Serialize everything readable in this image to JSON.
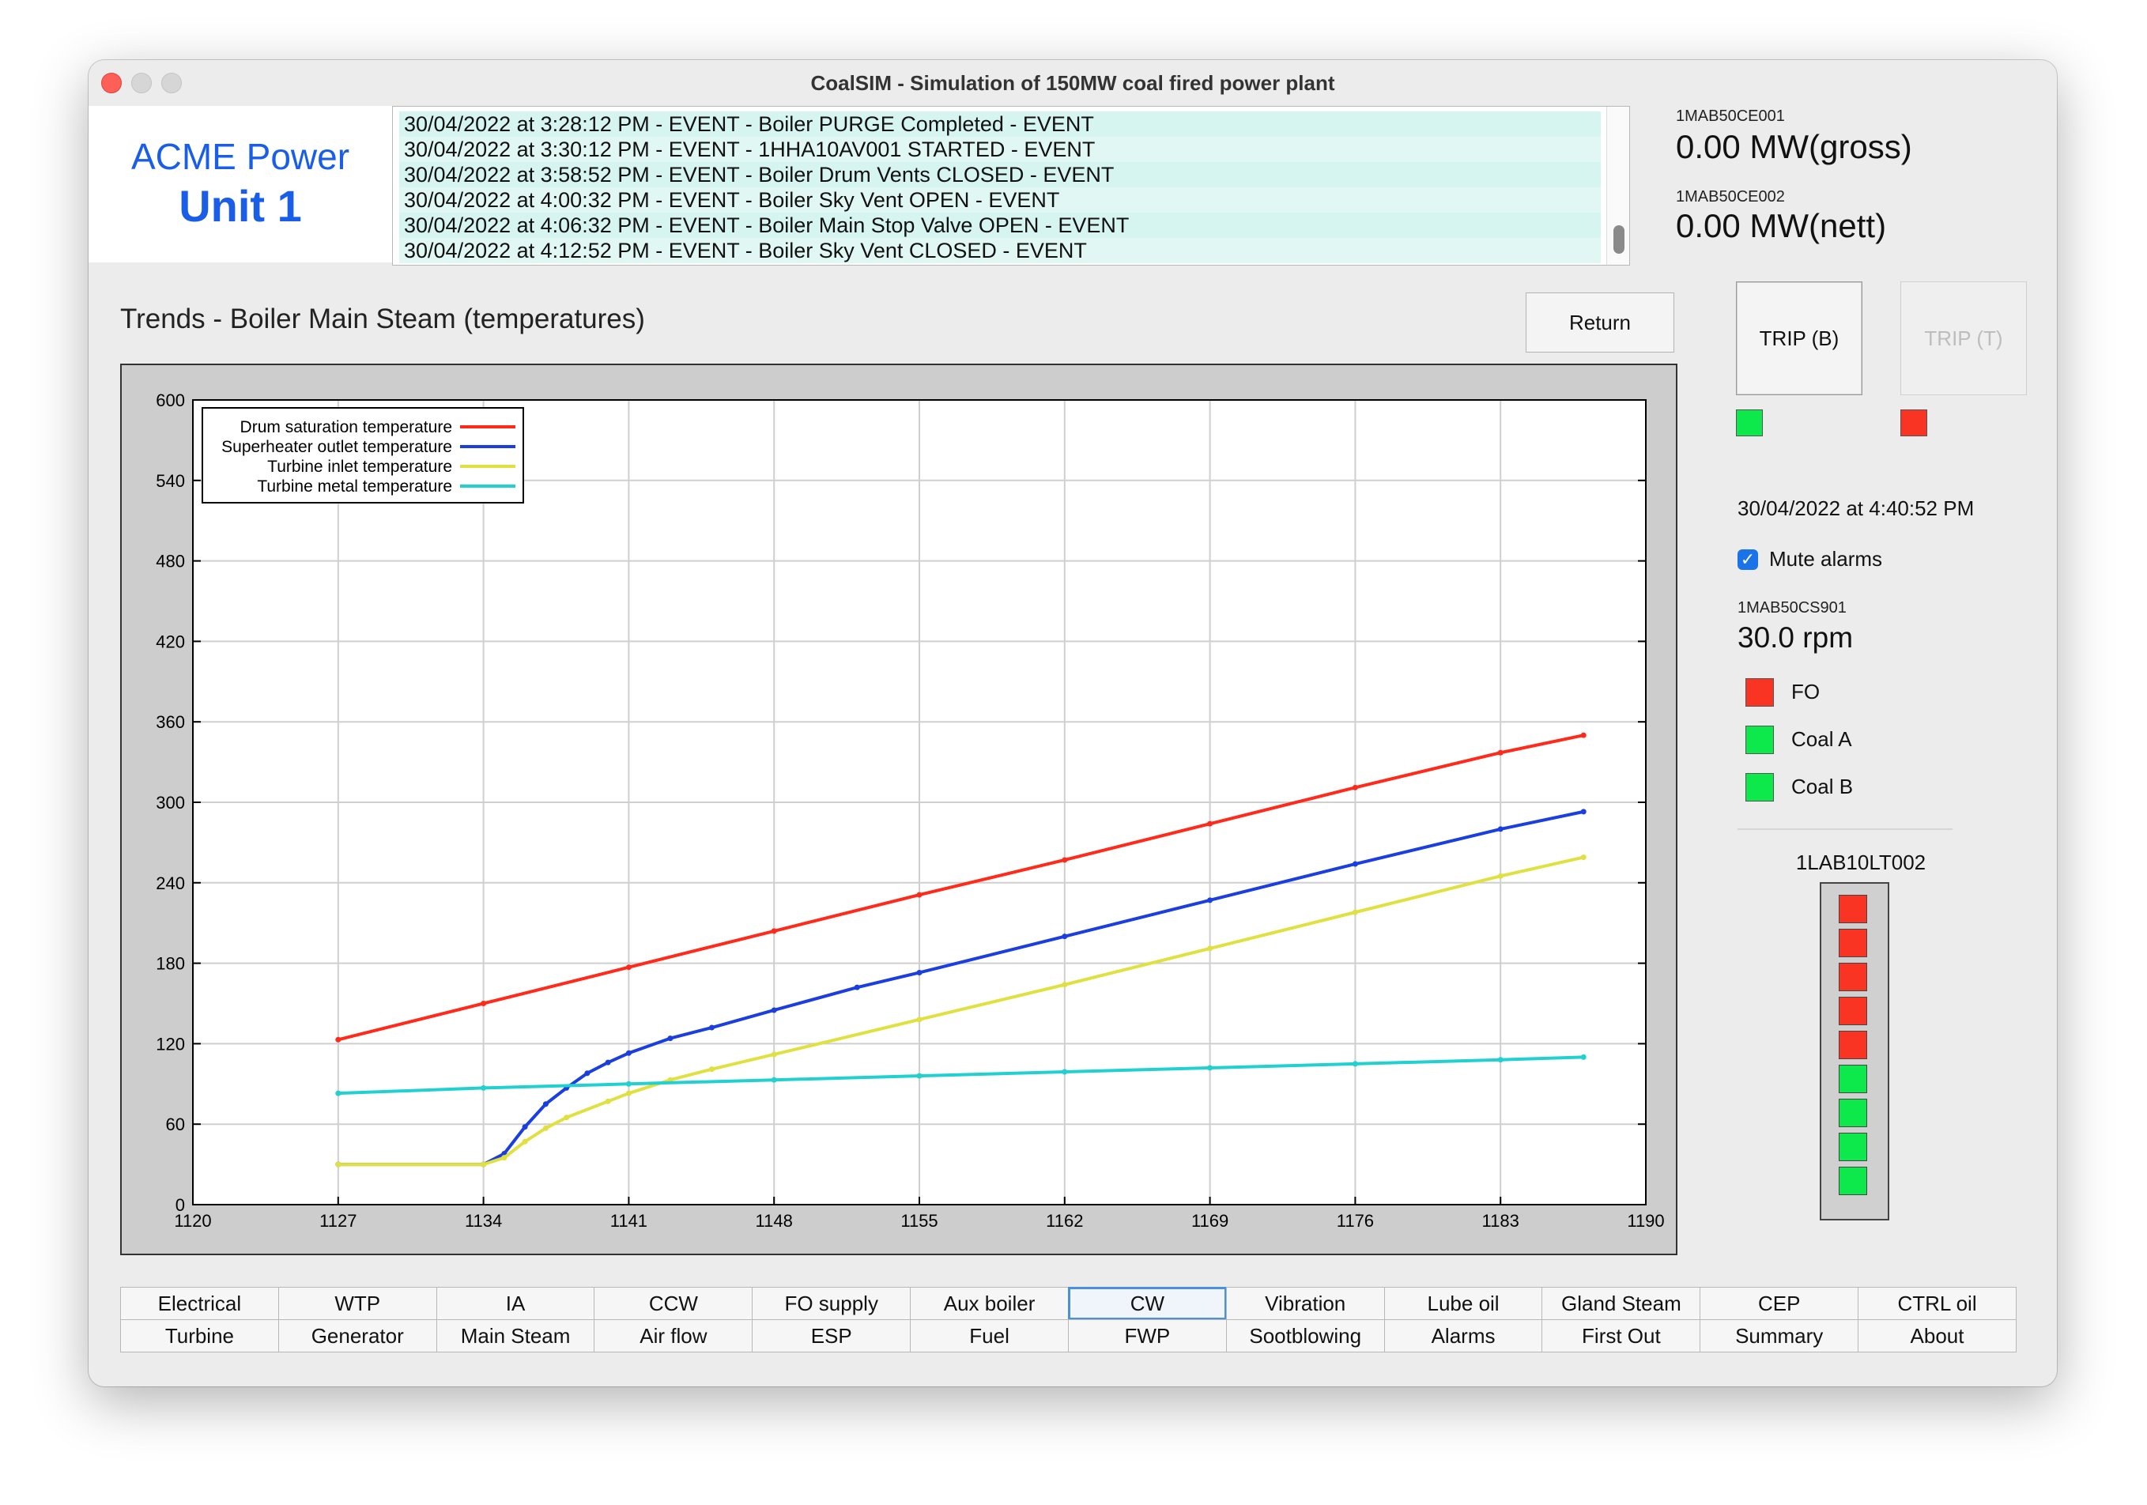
{
  "window": {
    "title": "CoalSIM - Simulation of 150MW coal fired power plant"
  },
  "brand": {
    "company": "ACME Power",
    "unit": "Unit 1"
  },
  "events": [
    "30/04/2022 at 3:28:12 PM - EVENT - Boiler PURGE Completed - EVENT",
    "30/04/2022 at 3:30:12 PM - EVENT - 1HHA10AV001 STARTED - EVENT",
    "30/04/2022 at 3:58:52 PM - EVENT - Boiler Drum Vents CLOSED - EVENT",
    "30/04/2022 at 4:00:32 PM - EVENT - Boiler Sky Vent OPEN - EVENT",
    "30/04/2022 at 4:06:32 PM - EVENT - Boiler Main Stop Valve OPEN - EVENT",
    "30/04/2022 at 4:12:52 PM - EVENT - Boiler Sky Vent CLOSED - EVENT"
  ],
  "kpi": {
    "gross": {
      "tag": "1MAB50CE001",
      "value": "0.00 MW(gross)"
    },
    "nett": {
      "tag": "1MAB50CE002",
      "value": "0.00 MW(nett)"
    }
  },
  "trend": {
    "title": "Trends - Boiler Main Steam (temperatures)",
    "return_label": "Return"
  },
  "trip": {
    "b": {
      "label": "TRIP (B)",
      "indicator": "#0de84a"
    },
    "t": {
      "label": "TRIP (T)",
      "indicator": "#fa3422"
    }
  },
  "status": {
    "datetime": "30/04/2022 at 4:40:52 PM",
    "mute_label": "Mute alarms",
    "mute_checked": true,
    "speed_tag": "1MAB50CS901",
    "speed_value": "30.0 rpm",
    "fuels": [
      {
        "label": "FO",
        "color": "#fa3422"
      },
      {
        "label": "Coal A",
        "color": "#0de84a"
      },
      {
        "label": "Coal B",
        "color": "#0de84a"
      }
    ],
    "level_tag": "1LAB10LT002",
    "level_lamps": [
      "#fa3422",
      "#fa3422",
      "#fa3422",
      "#fa3422",
      "#fa3422",
      "#0de84a",
      "#0de84a",
      "#0de84a",
      "#0de84a"
    ]
  },
  "nav": {
    "row1": [
      "Electrical",
      "WTP",
      "IA",
      "CCW",
      "FO supply",
      "Aux boiler",
      "CW",
      "Vibration",
      "Lube oil",
      "Gland Steam",
      "CEP",
      "CTRL oil"
    ],
    "row2": [
      "Turbine",
      "Generator",
      "Main Steam",
      "Air flow",
      "ESP",
      "Fuel",
      "FWP",
      "Sootblowing",
      "Alarms",
      "First Out",
      "Summary",
      "About"
    ],
    "active": "CW"
  },
  "chart_data": {
    "type": "line",
    "xlim": [
      1120,
      1190
    ],
    "ylim": [
      0,
      600
    ],
    "xticks": [
      1120,
      1127,
      1134,
      1141,
      1148,
      1155,
      1162,
      1169,
      1176,
      1183,
      1190
    ],
    "yticks": [
      0,
      60,
      120,
      180,
      240,
      300,
      360,
      420,
      480,
      540,
      600
    ],
    "grid": true,
    "legend": "top-left",
    "series": [
      {
        "name": "Drum saturation temperature",
        "color": "#ff2a1a",
        "x": [
          1127,
          1134,
          1141,
          1148,
          1155,
          1162,
          1169,
          1176,
          1183,
          1187
        ],
        "y": [
          123,
          150,
          177,
          204,
          231,
          257,
          284,
          311,
          337,
          350
        ]
      },
      {
        "name": "Superheater outlet temperature",
        "color": "#1a3ee0",
        "x": [
          1127,
          1134,
          1135,
          1136,
          1137,
          1138,
          1139,
          1140,
          1141,
          1143,
          1145,
          1148,
          1152,
          1155,
          1162,
          1169,
          1176,
          1183,
          1187
        ],
        "y": [
          30,
          30,
          38,
          58,
          75,
          87,
          98,
          106,
          113,
          124,
          132,
          145,
          162,
          173,
          200,
          227,
          254,
          280,
          293
        ]
      },
      {
        "name": "Turbine inlet temperature",
        "color": "#e0e040",
        "x": [
          1127,
          1134,
          1135,
          1136,
          1137,
          1138,
          1140,
          1141,
          1143,
          1145,
          1148,
          1155,
          1162,
          1169,
          1176,
          1183,
          1187
        ],
        "y": [
          30,
          30,
          35,
          47,
          57,
          65,
          77,
          83,
          93,
          101,
          112,
          138,
          164,
          191,
          218,
          245,
          259
        ]
      },
      {
        "name": "Turbine metal temperature",
        "color": "#22d0d0",
        "x": [
          1127,
          1134,
          1141,
          1148,
          1155,
          1162,
          1169,
          1176,
          1183,
          1187
        ],
        "y": [
          83,
          87,
          90,
          93,
          96,
          99,
          102,
          105,
          108,
          110
        ]
      }
    ]
  }
}
